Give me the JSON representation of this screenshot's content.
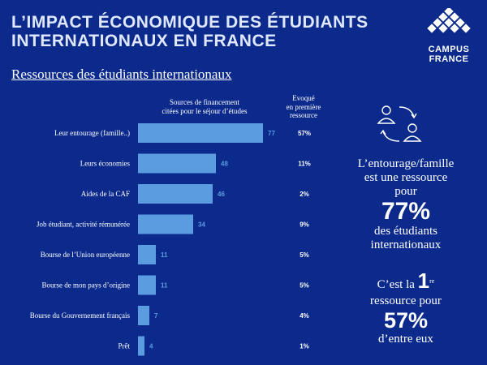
{
  "header": {
    "title_line1": "L’IMPACT ÉCONOMIQUE DES ÉTUDIANTS",
    "title_line2": "INTERNATIONAUX EN FRANCE",
    "logo_line1": "CAMPUS",
    "logo_line2": "FRANCE",
    "subtitle": "Ressources des étudiants internationaux"
  },
  "columns": {
    "sources_line1": "Sources de financement",
    "sources_line2": "citées pour le séjour d’études",
    "first_line1": "Evoqué",
    "first_line2": "en première",
    "first_line3": "ressource"
  },
  "chart_data": {
    "type": "bar",
    "orientation": "horizontal",
    "categories": [
      "Leur entourage (famille..)",
      "Leurs économies",
      "Aides de la CAF",
      "Job étudiant, activité rémunérée",
      "Bourse de l’Union européenne",
      "Bourse de mon pays d’origine",
      "Bourse du Gouvernement français",
      "Prêt"
    ],
    "values": [
      77,
      48,
      46,
      34,
      11,
      11,
      7,
      4
    ],
    "first_resource": [
      "57%",
      "11%",
      "2%",
      "9%",
      "5%",
      "5%",
      "4%",
      "1%"
    ],
    "xlim": [
      0,
      100
    ],
    "bar_color": "#5b9be0"
  },
  "side": {
    "text1_line1": "L’entourage/famille",
    "text1_line2": "est une ressource",
    "text1_line3": "pour",
    "big1": "77%",
    "text1_line4": "des étudiants",
    "text1_line5": "internationaux",
    "text2_pre": "C’est la",
    "rank": "1",
    "rank_sup": "re",
    "text2_line2": "ressource pour",
    "big2": "57%",
    "text2_line3": "d’entre eux"
  }
}
